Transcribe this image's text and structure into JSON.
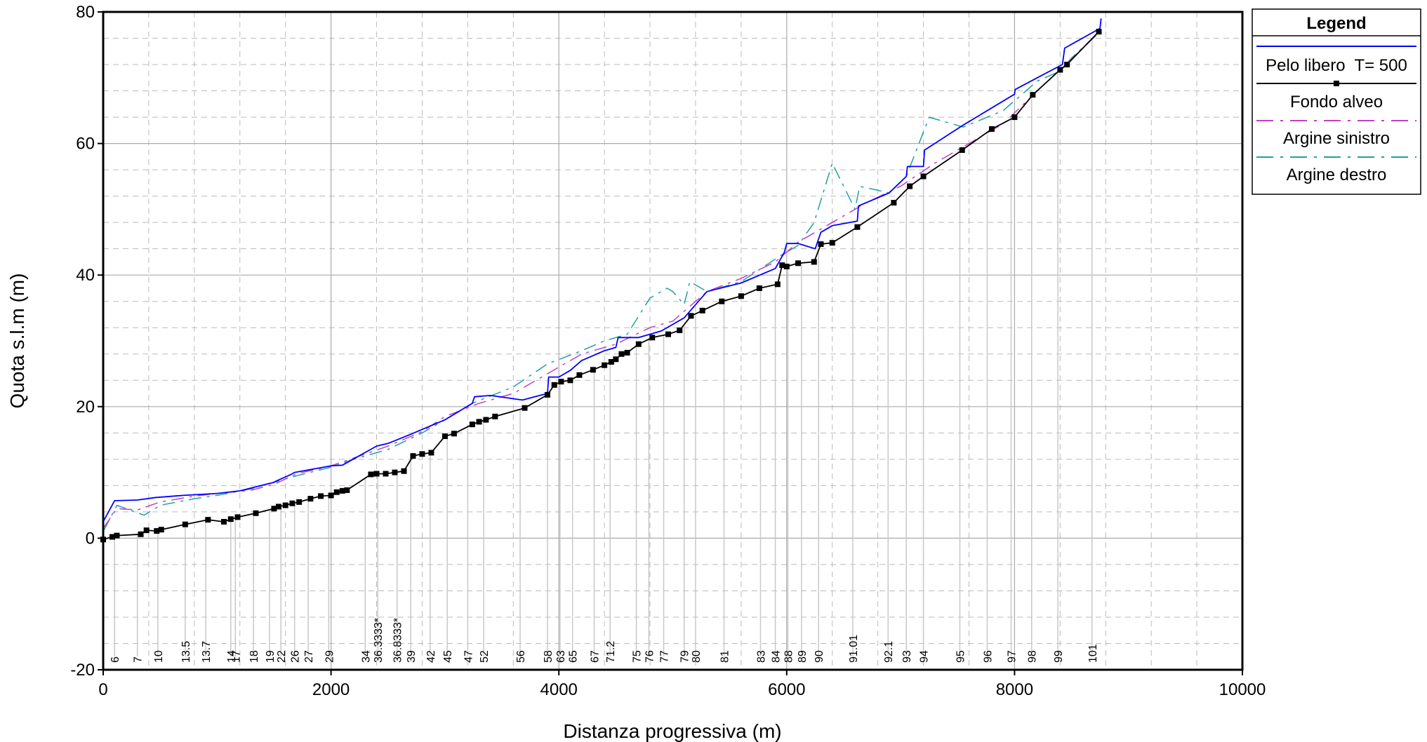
{
  "chart_data": {
    "type": "line",
    "xlabel": "Distanza progressiva (m)",
    "ylabel": "Quota s.l.m (m)",
    "xlim": [
      0,
      10000
    ],
    "ylim": [
      -20,
      80
    ],
    "x_ticks": [
      0,
      2000,
      4000,
      6000,
      8000,
      10000
    ],
    "y_ticks": [
      -20,
      0,
      20,
      40,
      60,
      80
    ],
    "grid": "major solid, minor dashed",
    "legend": {
      "title": "Legend",
      "placement": "right-outside-top",
      "entries": [
        {
          "label": "Pelo libero  T= 500",
          "color": "#0000ff",
          "style": "solid"
        },
        {
          "label": "Fondo alveo",
          "color": "#000000",
          "style": "solid-marker"
        },
        {
          "label": "Argine sinistro",
          "color": "#c040c0",
          "style": "dashdot"
        },
        {
          "label": "Argine destro",
          "color": "#20a0a0",
          "style": "dashdot"
        }
      ]
    },
    "series": [
      {
        "name": "Pelo libero  T= 500",
        "color": "#0000ff",
        "x": [
          0,
          100,
          110,
          300,
          470,
          480,
          700,
          1000,
          1200,
          1500,
          1520,
          1650,
          1680,
          2000,
          2100,
          2400,
          2500,
          2700,
          3000,
          3240,
          3260,
          3400,
          3680,
          3900,
          3910,
          4000,
          4100,
          4200,
          4400,
          4500,
          4520,
          4700,
          4900,
          5100,
          5300,
          5600,
          5900,
          5980,
          6000,
          6100,
          6250,
          6300,
          6400,
          6620,
          6630,
          6900,
          7050,
          7060,
          7200,
          7210,
          7550,
          8000,
          8005,
          8200,
          8420,
          8440,
          8750,
          8760
        ],
        "y": [
          2.5,
          5.7,
          5.7,
          5.8,
          6.2,
          6.2,
          6.5,
          6.8,
          7.2,
          8.5,
          8.7,
          9.7,
          10.0,
          11.0,
          11.1,
          14.0,
          14.4,
          15.8,
          18.0,
          20.5,
          21.5,
          21.7,
          21.0,
          22.0,
          24.5,
          24.5,
          25.5,
          27.0,
          28.5,
          29.0,
          30.5,
          30.5,
          31.5,
          33.5,
          37.5,
          38.8,
          41.0,
          43.5,
          44.8,
          44.8,
          44.0,
          46.5,
          47.5,
          48.2,
          50.5,
          52.5,
          55.0,
          56.5,
          56.5,
          59.0,
          62.8,
          67.5,
          68.2,
          70.0,
          72.0,
          74.5,
          77.5,
          79.0
        ]
      },
      {
        "name": "Fondo alveo",
        "color": "#000000",
        "x": [
          0,
          80,
          120,
          330,
          380,
          470,
          510,
          720,
          920,
          1060,
          1120,
          1180,
          1340,
          1500,
          1540,
          1600,
          1660,
          1720,
          1820,
          1910,
          2000,
          2050,
          2100,
          2140,
          2350,
          2400,
          2480,
          2560,
          2640,
          2720,
          2800,
          2880,
          3000,
          3080,
          3240,
          3300,
          3360,
          3440,
          3700,
          3900,
          3960,
          4020,
          4100,
          4180,
          4300,
          4400,
          4460,
          4500,
          4550,
          4600,
          4700,
          4820,
          4960,
          5060,
          5160,
          5260,
          5430,
          5600,
          5760,
          5920,
          5960,
          6000,
          6100,
          6240,
          6300,
          6400,
          6620,
          6940,
          7080,
          7200,
          7540,
          7800,
          8000,
          8160,
          8400,
          8460,
          8740
        ],
        "y": [
          -0.2,
          0.2,
          0.4,
          0.6,
          1.2,
          1.1,
          1.3,
          2.1,
          2.8,
          2.5,
          2.9,
          3.2,
          3.8,
          4.5,
          4.8,
          5.0,
          5.3,
          5.5,
          6.0,
          6.4,
          6.5,
          7.0,
          7.2,
          7.3,
          9.7,
          9.8,
          9.8,
          10.0,
          10.2,
          12.5,
          12.8,
          13.0,
          15.5,
          15.9,
          17.3,
          17.7,
          18.0,
          18.5,
          19.8,
          21.8,
          23.3,
          23.8,
          24.0,
          24.8,
          25.6,
          26.3,
          26.8,
          27.2,
          28.0,
          28.2,
          29.5,
          30.5,
          31.0,
          31.6,
          33.8,
          34.6,
          36.0,
          36.8,
          38.0,
          38.6,
          41.5,
          41.3,
          41.8,
          42.0,
          44.7,
          44.9,
          47.3,
          51.0,
          53.5,
          55.0,
          59.0,
          62.2,
          64.0,
          67.4,
          71.2,
          72.0,
          77.0
        ]
      },
      {
        "name": "Argine sinistro",
        "color": "#c040c0",
        "x": [
          0,
          120,
          300,
          500,
          800,
          1000,
          1300,
          1500,
          1700,
          2000,
          2200,
          2500,
          2800,
          3000,
          3300,
          3600,
          3900,
          4200,
          4500,
          4800,
          5000,
          5300,
          5600,
          5900,
          6100,
          6400,
          6700,
          7000,
          7300,
          7600,
          7900,
          8200,
          8450,
          8750
        ],
        "y": [
          1.5,
          4.5,
          4.3,
          5.5,
          6.4,
          6.8,
          7.3,
          8.2,
          9.8,
          11.0,
          12.2,
          14.0,
          16.2,
          18.5,
          20.5,
          22.0,
          25.0,
          28.0,
          29.5,
          32.0,
          33.0,
          37.5,
          39.5,
          42.0,
          45.0,
          48.0,
          51.0,
          53.5,
          57.0,
          60.0,
          63.0,
          68.0,
          72.0,
          77.0
        ]
      },
      {
        "name": "Argine destro",
        "color": "#20a0a0",
        "x": [
          0,
          120,
          360,
          500,
          800,
          1000,
          1300,
          1500,
          1700,
          2000,
          2200,
          2500,
          2800,
          3000,
          3240,
          3600,
          3900,
          4200,
          4400,
          4600,
          4800,
          4950,
          5000,
          5100,
          5150,
          5300,
          5600,
          5950,
          6100,
          6240,
          6400,
          6600,
          6640,
          6900,
          7050,
          7250,
          7550,
          7900,
          8200,
          8400,
          8500,
          8750
        ],
        "y": [
          1.0,
          5.0,
          3.5,
          5.0,
          6.0,
          6.5,
          7.5,
          8.5,
          9.5,
          10.8,
          12.0,
          13.5,
          16.0,
          18.0,
          20.5,
          23.0,
          26.5,
          28.5,
          30.0,
          31.0,
          36.5,
          38.0,
          37.5,
          35.5,
          39.0,
          37.5,
          39.0,
          43.0,
          44.5,
          48.0,
          57.0,
          50.0,
          53.5,
          52.5,
          55.0,
          64.0,
          62.5,
          65.0,
          69.5,
          71.0,
          73.0,
          77.0
        ]
      }
    ],
    "section_labels": [
      {
        "x": 100,
        "label": "6"
      },
      {
        "x": 300,
        "label": "7"
      },
      {
        "x": 480,
        "label": "10"
      },
      {
        "x": 720,
        "label": "13.5"
      },
      {
        "x": 900,
        "label": "13.7"
      },
      {
        "x": 1120,
        "label": "14"
      },
      {
        "x": 1160,
        "label": "17"
      },
      {
        "x": 1320,
        "label": "18"
      },
      {
        "x": 1460,
        "label": "19"
      },
      {
        "x": 1560,
        "label": "22"
      },
      {
        "x": 1680,
        "label": "26"
      },
      {
        "x": 1800,
        "label": "27"
      },
      {
        "x": 1980,
        "label": "29"
      },
      {
        "x": 2300,
        "label": "34"
      },
      {
        "x": 2410,
        "label": "36.3333*"
      },
      {
        "x": 2580,
        "label": "36.8333*"
      },
      {
        "x": 2700,
        "label": "39"
      },
      {
        "x": 2870,
        "label": "42"
      },
      {
        "x": 3020,
        "label": "45"
      },
      {
        "x": 3200,
        "label": "47"
      },
      {
        "x": 3340,
        "label": "52"
      },
      {
        "x": 3660,
        "label": "56"
      },
      {
        "x": 3900,
        "label": "58"
      },
      {
        "x": 4010,
        "label": "63"
      },
      {
        "x": 4120,
        "label": "65"
      },
      {
        "x": 4310,
        "label": "67"
      },
      {
        "x": 4450,
        "label": "71.2"
      },
      {
        "x": 4680,
        "label": "75"
      },
      {
        "x": 4790,
        "label": "76"
      },
      {
        "x": 4920,
        "label": "77"
      },
      {
        "x": 5100,
        "label": "79"
      },
      {
        "x": 5200,
        "label": "80"
      },
      {
        "x": 5450,
        "label": "81"
      },
      {
        "x": 5770,
        "label": "83"
      },
      {
        "x": 5900,
        "label": "84"
      },
      {
        "x": 6010,
        "label": "88"
      },
      {
        "x": 6130,
        "label": "89"
      },
      {
        "x": 6280,
        "label": "90"
      },
      {
        "x": 6580,
        "label": "91.01"
      },
      {
        "x": 6890,
        "label": "92.1"
      },
      {
        "x": 7050,
        "label": "93"
      },
      {
        "x": 7200,
        "label": "94"
      },
      {
        "x": 7520,
        "label": "95"
      },
      {
        "x": 7760,
        "label": "96"
      },
      {
        "x": 7970,
        "label": "97"
      },
      {
        "x": 8150,
        "label": "98"
      },
      {
        "x": 8380,
        "label": "99"
      },
      {
        "x": 8680,
        "label": "101"
      }
    ]
  }
}
